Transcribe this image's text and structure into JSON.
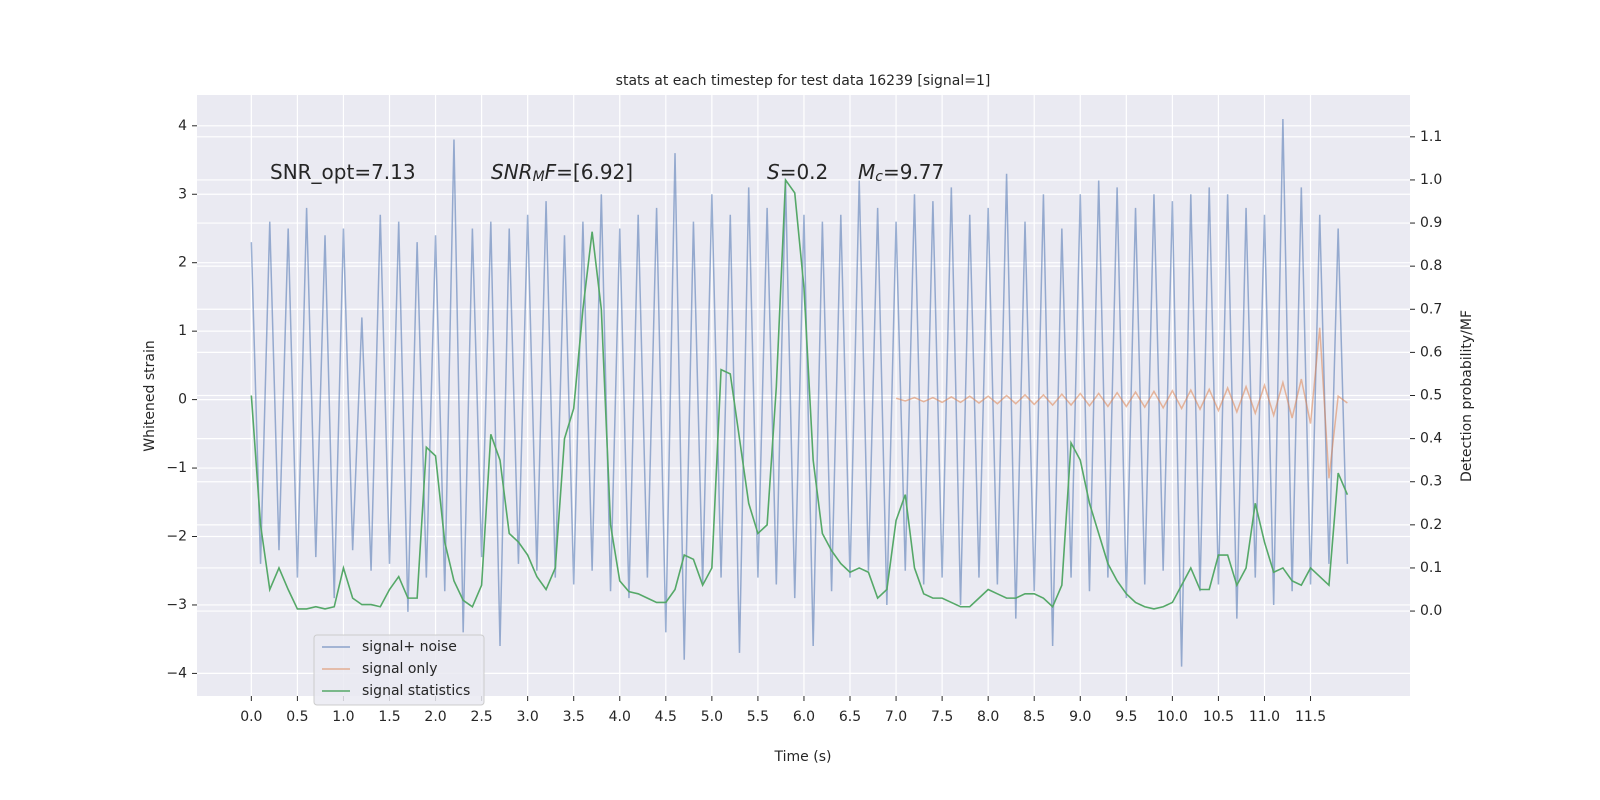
{
  "chart_data": {
    "type": "line",
    "title": "stats at each timestep for test data 16239 [signal=1]",
    "x_label": "Time (s)",
    "y_label": "Whitened strain",
    "y2_label": "Detection probability/MF",
    "xlim": [
      -0.59,
      12.58
    ],
    "ylim": [
      -4.33,
      4.45
    ],
    "y2lim": [
      -0.197,
      1.197
    ],
    "xticks": [
      {
        "value": 0,
        "label": "0.0"
      },
      {
        "value": 0.5,
        "label": "0.5"
      },
      {
        "value": 1,
        "label": "1.0"
      },
      {
        "value": 1.5,
        "label": "1.5"
      },
      {
        "value": 2,
        "label": "2.0"
      },
      {
        "value": 2.5,
        "label": "2.5"
      },
      {
        "value": 3,
        "label": "3.0"
      },
      {
        "value": 3.5,
        "label": "3.5"
      },
      {
        "value": 4,
        "label": "4.0"
      },
      {
        "value": 4.5,
        "label": "4.5"
      },
      {
        "value": 5,
        "label": "5.0"
      },
      {
        "value": 5.5,
        "label": "5.5"
      },
      {
        "value": 6,
        "label": "6.0"
      },
      {
        "value": 6.5,
        "label": "6.5"
      },
      {
        "value": 7,
        "label": "7.0"
      },
      {
        "value": 7.5,
        "label": "7.5"
      },
      {
        "value": 8,
        "label": "8.0"
      },
      {
        "value": 8.5,
        "label": "8.5"
      },
      {
        "value": 9,
        "label": "9.0"
      },
      {
        "value": 9.5,
        "label": "9.5"
      },
      {
        "value": 10,
        "label": "10.0"
      },
      {
        "value": 10.5,
        "label": "10.5"
      },
      {
        "value": 11,
        "label": "11.0"
      },
      {
        "value": 11.5,
        "label": "11.5"
      }
    ],
    "yticks": [
      {
        "value": -4,
        "label": "−4"
      },
      {
        "value": -3,
        "label": "−3"
      },
      {
        "value": -2,
        "label": "−2"
      },
      {
        "value": -1,
        "label": "−1"
      },
      0,
      1,
      2,
      3,
      4
    ],
    "y2ticks": [
      {
        "value": 0,
        "label": "0.0"
      },
      {
        "value": 0.1,
        "label": "0.1"
      },
      {
        "value": 0.2,
        "label": "0.2"
      },
      {
        "value": 0.3,
        "label": "0.3"
      },
      {
        "value": 0.4,
        "label": "0.4"
      },
      {
        "value": 0.5,
        "label": "0.5"
      },
      {
        "value": 0.6,
        "label": "0.6"
      },
      {
        "value": 0.7,
        "label": "0.7"
      },
      {
        "value": 0.8,
        "label": "0.8"
      },
      {
        "value": 0.9,
        "label": "0.9"
      },
      {
        "value": 1,
        "label": "1.0"
      },
      {
        "value": 1.1,
        "label": "1.1"
      }
    ],
    "grid": true,
    "legend": "lower left",
    "annotations": [
      {
        "runs": [
          {
            "text": "SNR_opt=7.13"
          }
        ]
      },
      {
        "runs": [
          {
            "text": "SNR",
            "italic": true
          },
          {
            "text": "M",
            "italic": true,
            "sub": true
          },
          {
            "text": "F",
            "italic": true
          },
          {
            "text": "=[6.92]"
          }
        ]
      },
      {
        "runs": [
          {
            "text": "S",
            "italic": true
          },
          {
            "text": "=0.2"
          }
        ]
      },
      {
        "runs": [
          {
            "text": "M",
            "italic": true
          },
          {
            "text": "c",
            "italic": true,
            "sub": true
          },
          {
            "text": "=9.77"
          }
        ]
      }
    ],
    "series": [
      {
        "name": "signal+ noise",
        "color": "#4c72b0",
        "x": [
          0,
          0.1,
          0.2,
          0.3,
          0.4,
          0.5,
          0.6,
          0.7,
          0.8,
          0.9,
          1,
          1.1,
          1.2,
          1.3,
          1.4,
          1.5,
          1.6,
          1.7,
          1.8,
          1.9,
          2,
          2.1,
          2.2,
          2.3,
          2.4,
          2.5,
          2.6,
          2.7,
          2.8,
          2.9,
          3,
          3.1,
          3.2,
          3.3,
          3.4,
          3.5,
          3.6,
          3.7,
          3.8,
          3.9,
          4,
          4.1,
          4.2,
          4.3,
          4.4,
          4.5,
          4.6,
          4.7,
          4.8,
          4.9,
          5,
          5.1,
          5.2,
          5.3,
          5.4,
          5.5,
          5.6,
          5.7,
          5.8,
          5.9,
          6,
          6.1,
          6.2,
          6.3,
          6.4,
          6.5,
          6.6,
          6.7,
          6.8,
          6.9,
          7,
          7.1,
          7.2,
          7.3,
          7.4,
          7.5,
          7.6,
          7.7,
          7.8,
          7.9,
          8,
          8.1,
          8.2,
          8.3,
          8.4,
          8.5,
          8.6,
          8.7,
          8.8,
          8.9,
          9,
          9.1,
          9.2,
          9.3,
          9.4,
          9.5,
          9.6,
          9.7,
          9.8,
          9.9,
          10,
          10.1,
          10.2,
          10.3,
          10.4,
          10.5,
          10.6,
          10.7,
          10.8,
          10.9,
          11,
          11.1,
          11.2,
          11.3,
          11.4,
          11.5,
          11.6,
          11.7,
          11.8,
          11.9
        ],
        "values": [
          2.3,
          -2.4,
          2.6,
          -2.2,
          2.5,
          -2.6,
          2.8,
          -2.3,
          2.4,
          -2.9,
          2.5,
          -2.2,
          1.2,
          -2.5,
          2.7,
          -2.4,
          2.6,
          -3.1,
          2.3,
          -2.6,
          2.4,
          -2.8,
          3.8,
          -3.4,
          2.5,
          -2.3,
          2.6,
          -3.6,
          2.5,
          -2.4,
          2.7,
          -2.5,
          2.9,
          -2.6,
          2.4,
          -2.7,
          2.6,
          -2.5,
          3.0,
          -2.8,
          2.5,
          -2.9,
          2.7,
          -2.6,
          2.8,
          -3.4,
          3.6,
          -3.8,
          2.6,
          -2.7,
          3.0,
          -2.6,
          2.7,
          -3.7,
          3.1,
          -2.6,
          2.8,
          -2.7,
          3.2,
          -2.9,
          2.7,
          -3.6,
          2.6,
          -2.8,
          2.7,
          -2.6,
          3.2,
          -2.5,
          2.8,
          -3.0,
          2.6,
          -2.5,
          3.0,
          -2.7,
          2.9,
          -2.6,
          3.1,
          -3.0,
          2.7,
          -2.6,
          2.8,
          -2.7,
          3.3,
          -3.2,
          2.6,
          -2.8,
          3.0,
          -3.6,
          2.5,
          -2.6,
          3.0,
          -2.8,
          3.2,
          -2.6,
          3.1,
          -2.9,
          2.8,
          -2.7,
          3.0,
          -2.5,
          2.9,
          -3.9,
          3.0,
          -2.8,
          3.1,
          -2.7,
          3.0,
          -3.2,
          2.8,
          -2.6,
          2.7,
          -3.0,
          4.1,
          -2.8,
          3.1,
          -2.7,
          2.7,
          -2.4,
          2.5,
          -2.4
        ]
      },
      {
        "name": "signal only",
        "color": "#dd8452",
        "x": [
          7,
          7.1,
          7.2,
          7.3,
          7.4,
          7.5,
          7.6,
          7.7,
          7.8,
          7.9,
          8,
          8.1,
          8.2,
          8.3,
          8.4,
          8.5,
          8.6,
          8.7,
          8.8,
          8.9,
          9,
          9.1,
          9.2,
          9.3,
          9.4,
          9.5,
          9.6,
          9.7,
          9.8,
          9.9,
          10,
          10.1,
          10.2,
          10.3,
          10.4,
          10.5,
          10.6,
          10.7,
          10.8,
          10.9,
          11,
          11.1,
          11.2,
          11.3,
          11.4,
          11.5,
          11.6,
          11.7,
          11.8,
          11.9
        ],
        "values": [
          0.02,
          -0.02,
          0.03,
          -0.03,
          0.03,
          -0.04,
          0.04,
          -0.04,
          0.05,
          -0.05,
          0.05,
          -0.06,
          0.06,
          -0.06,
          0.07,
          -0.07,
          0.07,
          -0.08,
          0.08,
          -0.08,
          0.09,
          -0.09,
          0.09,
          -0.1,
          0.1,
          -0.1,
          0.11,
          -0.11,
          0.12,
          -0.12,
          0.13,
          -0.13,
          0.14,
          -0.14,
          0.15,
          -0.16,
          0.17,
          -0.18,
          0.19,
          -0.2,
          0.21,
          -0.23,
          0.25,
          -0.27,
          0.3,
          -0.35,
          1.05,
          -1.15,
          0.05,
          -0.05
        ]
      },
      {
        "name": "signal statistics",
        "color": "#55a868",
        "axis": "y2",
        "x": [
          0,
          0.1,
          0.2,
          0.3,
          0.4,
          0.5,
          0.6,
          0.7,
          0.8,
          0.9,
          1,
          1.1,
          1.2,
          1.3,
          1.4,
          1.5,
          1.6,
          1.7,
          1.8,
          1.9,
          2,
          2.1,
          2.2,
          2.3,
          2.4,
          2.5,
          2.6,
          2.7,
          2.8,
          2.9,
          3,
          3.1,
          3.2,
          3.3,
          3.4,
          3.5,
          3.6,
          3.7,
          3.8,
          3.9,
          4,
          4.1,
          4.2,
          4.3,
          4.4,
          4.5,
          4.6,
          4.7,
          4.8,
          4.9,
          5,
          5.1,
          5.2,
          5.3,
          5.4,
          5.5,
          5.6,
          5.7,
          5.8,
          5.9,
          6,
          6.1,
          6.2,
          6.3,
          6.4,
          6.5,
          6.6,
          6.7,
          6.8,
          6.9,
          7,
          7.1,
          7.2,
          7.3,
          7.4,
          7.5,
          7.6,
          7.7,
          7.8,
          7.9,
          8,
          8.1,
          8.2,
          8.3,
          8.4,
          8.5,
          8.6,
          8.7,
          8.8,
          8.9,
          9,
          9.1,
          9.2,
          9.3,
          9.4,
          9.5,
          9.6,
          9.7,
          9.8,
          9.9,
          10,
          10.1,
          10.2,
          10.3,
          10.4,
          10.5,
          10.6,
          10.7,
          10.8,
          10.9,
          11,
          11.1,
          11.2,
          11.3,
          11.4,
          11.5,
          11.6,
          11.7,
          11.8,
          11.9
        ],
        "values": [
          0.5,
          0.2,
          0.05,
          0.1,
          0.05,
          0.005,
          0.005,
          0.01,
          0.005,
          0.01,
          0.1,
          0.03,
          0.015,
          0.015,
          0.01,
          0.05,
          0.08,
          0.03,
          0.03,
          0.38,
          0.36,
          0.16,
          0.07,
          0.025,
          0.01,
          0.06,
          0.41,
          0.35,
          0.18,
          0.16,
          0.13,
          0.08,
          0.05,
          0.1,
          0.4,
          0.47,
          0.7,
          0.88,
          0.7,
          0.2,
          0.07,
          0.045,
          0.04,
          0.03,
          0.02,
          0.02,
          0.05,
          0.13,
          0.12,
          0.06,
          0.1,
          0.56,
          0.55,
          0.4,
          0.25,
          0.18,
          0.2,
          0.52,
          1.0,
          0.97,
          0.75,
          0.35,
          0.18,
          0.14,
          0.11,
          0.09,
          0.1,
          0.09,
          0.03,
          0.05,
          0.21,
          0.27,
          0.1,
          0.04,
          0.03,
          0.03,
          0.02,
          0.01,
          0.01,
          0.03,
          0.05,
          0.04,
          0.03,
          0.03,
          0.04,
          0.04,
          0.03,
          0.01,
          0.06,
          0.39,
          0.35,
          0.25,
          0.18,
          0.11,
          0.07,
          0.04,
          0.02,
          0.01,
          0.005,
          0.01,
          0.02,
          0.06,
          0.1,
          0.05,
          0.05,
          0.13,
          0.13,
          0.06,
          0.1,
          0.25,
          0.16,
          0.09,
          0.1,
          0.07,
          0.06,
          0.1,
          0.08,
          0.06,
          0.32,
          0.27
        ]
      }
    ]
  }
}
